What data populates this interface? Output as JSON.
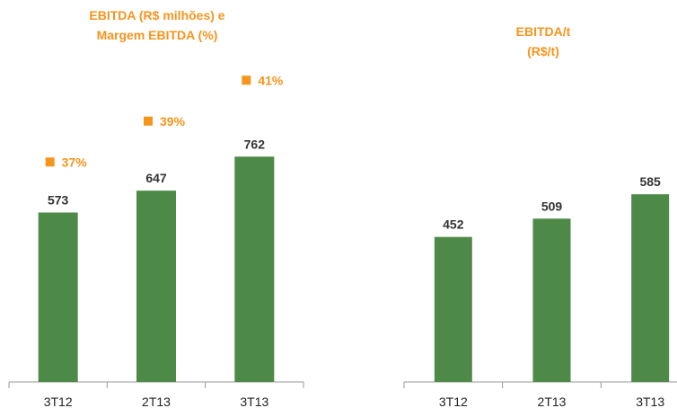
{
  "chart_data": [
    {
      "type": "bar",
      "title": "EBITDA (R$ milhões) e\nMargem EBITDA (%)",
      "categories": [
        "3T12",
        "2T13",
        "3T13"
      ],
      "series": [
        {
          "type": "bar",
          "color": "#4e8a47",
          "values": [
            573,
            647,
            762
          ]
        },
        {
          "type": "scatter",
          "axis": "y2",
          "color": "#f7941d",
          "values": [
            37,
            39,
            41
          ],
          "value_labels": [
            "37%",
            "39%",
            "41%"
          ]
        }
      ]
    },
    {
      "type": "bar",
      "title": "EBITDA/t\n(R$/t)",
      "categories": [
        "3T12",
        "2T13",
        "3T13"
      ],
      "series": [
        {
          "type": "bar",
          "color": "#4e8a47",
          "values": [
            452,
            509,
            585
          ]
        }
      ]
    }
  ]
}
